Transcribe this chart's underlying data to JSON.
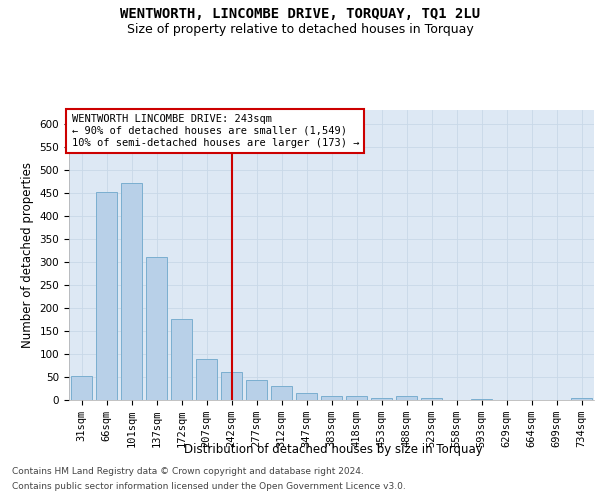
{
  "title": "WENTWORTH, LINCOMBE DRIVE, TORQUAY, TQ1 2LU",
  "subtitle": "Size of property relative to detached houses in Torquay",
  "xlabel": "Distribution of detached houses by size in Torquay",
  "ylabel": "Number of detached properties",
  "categories": [
    "31sqm",
    "66sqm",
    "101sqm",
    "137sqm",
    "172sqm",
    "207sqm",
    "242sqm",
    "277sqm",
    "312sqm",
    "347sqm",
    "383sqm",
    "418sqm",
    "453sqm",
    "488sqm",
    "523sqm",
    "558sqm",
    "593sqm",
    "629sqm",
    "664sqm",
    "699sqm",
    "734sqm"
  ],
  "values": [
    53,
    451,
    471,
    311,
    176,
    90,
    60,
    43,
    31,
    15,
    9,
    9,
    4,
    9,
    5,
    0,
    3,
    1,
    1,
    0,
    4
  ],
  "bar_color": "#b8d0e8",
  "bar_edge_color": "#7aaed0",
  "highlight_index": 6,
  "vline_x": 6,
  "vline_color": "#cc0000",
  "annotation_text": "WENTWORTH LINCOMBE DRIVE: 243sqm\n← 90% of detached houses are smaller (1,549)\n10% of semi-detached houses are larger (173) →",
  "annotation_box_color": "#ffffff",
  "annotation_box_edge": "#cc0000",
  "ylim": [
    0,
    630
  ],
  "yticks": [
    0,
    50,
    100,
    150,
    200,
    250,
    300,
    350,
    400,
    450,
    500,
    550,
    600
  ],
  "grid_color": "#c8d8e8",
  "plot_bg_color": "#dde8f4",
  "fig_bg_color": "#ffffff",
  "footer_line1": "Contains HM Land Registry data © Crown copyright and database right 2024.",
  "footer_line2": "Contains public sector information licensed under the Open Government Licence v3.0.",
  "title_fontsize": 10,
  "subtitle_fontsize": 9,
  "axis_label_fontsize": 8.5,
  "tick_fontsize": 7.5,
  "annotation_fontsize": 7.5,
  "footer_fontsize": 6.5
}
